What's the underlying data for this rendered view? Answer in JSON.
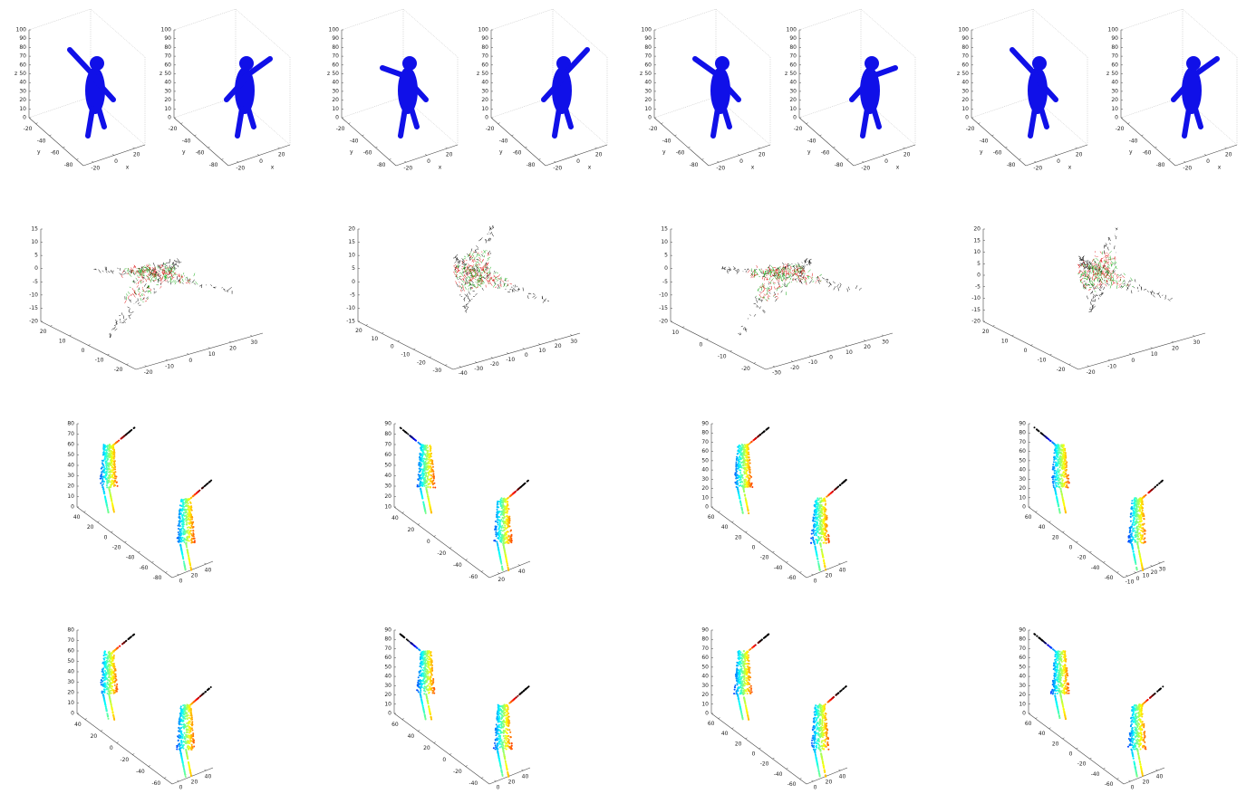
{
  "rows": [
    {
      "panels": [
        {
          "zticks": [
            0,
            10,
            20,
            30,
            40,
            50,
            60,
            70,
            80,
            90,
            100
          ],
          "yticks": [
            -20,
            -40,
            -60,
            -80
          ],
          "xticks": [
            -20,
            0,
            20
          ],
          "zlabel": "z",
          "ylabel": "y",
          "xlabel": "x"
        },
        {
          "zticks": [
            0,
            10,
            20,
            30,
            40,
            50,
            60,
            70,
            80,
            90,
            100
          ],
          "yticks": [
            -20,
            -40,
            -60,
            -80
          ],
          "xticks": [
            -20,
            0,
            20
          ],
          "zlabel": "z",
          "ylabel": "y",
          "xlabel": "x"
        },
        {
          "zticks": [
            0,
            10,
            20,
            30,
            40,
            50,
            60,
            70,
            80,
            90,
            100
          ],
          "yticks": [
            -20,
            -40,
            -60,
            -80
          ],
          "xticks": [
            -20,
            0,
            20
          ],
          "zlabel": "z",
          "ylabel": "y",
          "xlabel": "x"
        },
        {
          "zticks": [
            0,
            10,
            20,
            30,
            40,
            50,
            60,
            70,
            80,
            90,
            100
          ],
          "yticks": [
            -20,
            -40,
            -60,
            -80
          ],
          "xticks": [
            -20,
            0,
            20
          ],
          "zlabel": "z",
          "ylabel": "y",
          "xlabel": "x"
        },
        {
          "zticks": [
            0,
            10,
            20,
            30,
            40,
            50,
            60,
            70,
            80,
            90,
            100
          ],
          "yticks": [
            -20,
            -40,
            -60,
            -80
          ],
          "xticks": [
            -20,
            0,
            20
          ],
          "zlabel": "z",
          "ylabel": "y",
          "xlabel": "x"
        },
        {
          "zticks": [
            0,
            10,
            20,
            30,
            40,
            50,
            60,
            70,
            80,
            90,
            100
          ],
          "yticks": [
            -20,
            -40,
            -60,
            -80
          ],
          "xticks": [
            -20,
            0,
            20
          ],
          "zlabel": "z",
          "ylabel": "y",
          "xlabel": "x"
        },
        {
          "zticks": [
            0,
            10,
            20,
            30,
            40,
            50,
            60,
            70,
            80,
            90,
            100
          ],
          "yticks": [
            -20,
            -40,
            -60,
            -80
          ],
          "xticks": [
            -20,
            0,
            20
          ],
          "zlabel": "z",
          "ylabel": "y",
          "xlabel": "x"
        },
        {
          "zticks": [
            0,
            10,
            20,
            30,
            40,
            50,
            60,
            70,
            80,
            90,
            100
          ],
          "yticks": [
            -20,
            -40,
            -60,
            -80
          ],
          "xticks": [
            -20,
            0,
            20
          ],
          "zlabel": "z",
          "ylabel": "y",
          "xlabel": "x"
        }
      ]
    },
    {
      "panels": [
        {
          "zticks": [
            -20,
            -15,
            -10,
            -5,
            0,
            5,
            10,
            15
          ],
          "yticks": [
            20,
            10,
            0,
            -10,
            -20
          ],
          "xticks": [
            -20,
            -10,
            0,
            10,
            20,
            30
          ]
        },
        {
          "zticks": [
            -15,
            -10,
            -5,
            0,
            5,
            10,
            15,
            20
          ],
          "yticks": [
            20,
            10,
            0,
            -10,
            -20,
            -30
          ],
          "xticks": [
            -40,
            -30,
            -20,
            -10,
            0,
            10,
            20,
            30
          ]
        },
        {
          "zticks": [
            -20,
            -15,
            -10,
            -5,
            0,
            5,
            10,
            15
          ],
          "yticks": [
            10,
            0,
            -10,
            -20
          ],
          "xticks": [
            -30,
            -20,
            -10,
            0,
            10,
            20,
            30
          ]
        },
        {
          "zticks": [
            -20,
            -15,
            -10,
            -5,
            0,
            5,
            10,
            15,
            20
          ],
          "yticks": [
            20,
            10,
            0,
            -10,
            -20
          ],
          "xticks": [
            -20,
            -10,
            0,
            10,
            20,
            30
          ]
        }
      ]
    },
    {
      "panels": [
        {
          "zticks": [
            0,
            10,
            20,
            30,
            40,
            50,
            60,
            70,
            80
          ],
          "yticks": [
            40,
            20,
            0,
            -20,
            -40,
            -60,
            -80
          ],
          "xticks": [
            0,
            20,
            40
          ]
        },
        {
          "zticks": [
            10,
            20,
            30,
            40,
            50,
            60,
            70,
            80,
            90
          ],
          "yticks": [
            40,
            20,
            0,
            -20,
            -40,
            -60
          ],
          "xticks": [
            20,
            40
          ]
        },
        {
          "zticks": [
            0,
            10,
            20,
            30,
            40,
            50,
            60,
            70,
            80,
            90
          ],
          "yticks": [
            60,
            40,
            20,
            0,
            -20,
            -40,
            -60
          ],
          "xticks": [
            0,
            20,
            40
          ]
        },
        {
          "zticks": [
            0,
            10,
            20,
            30,
            40,
            50,
            60,
            70,
            80,
            90
          ],
          "yticks": [
            60,
            40,
            20,
            0,
            -20,
            -40,
            -60
          ],
          "xticks": [
            -10,
            0,
            10,
            20,
            30
          ]
        }
      ]
    },
    {
      "panels": [
        {
          "zticks": [
            0,
            10,
            20,
            30,
            40,
            50,
            60,
            70,
            80
          ],
          "yticks": [
            40,
            20,
            0,
            -20,
            -40,
            -60
          ],
          "xticks": [
            0,
            20,
            40
          ]
        },
        {
          "zticks": [
            0,
            10,
            20,
            30,
            40,
            50,
            60,
            70,
            80,
            90
          ],
          "yticks": [
            60,
            40,
            20,
            0,
            -20,
            -40
          ],
          "xticks": [
            0,
            20,
            40
          ]
        },
        {
          "zticks": [
            0,
            10,
            20,
            30,
            40,
            50,
            60,
            70,
            80,
            90
          ],
          "yticks": [
            60,
            40,
            20,
            0,
            -20,
            -40,
            -60
          ],
          "xticks": [
            0,
            20,
            40
          ]
        },
        {
          "zticks": [
            0,
            10,
            20,
            30,
            40,
            50,
            60,
            70,
            80,
            90
          ],
          "yticks": [
            60,
            40,
            20,
            0,
            -20,
            -40,
            -60
          ],
          "xticks": [
            0,
            20,
            40
          ]
        }
      ]
    }
  ]
}
